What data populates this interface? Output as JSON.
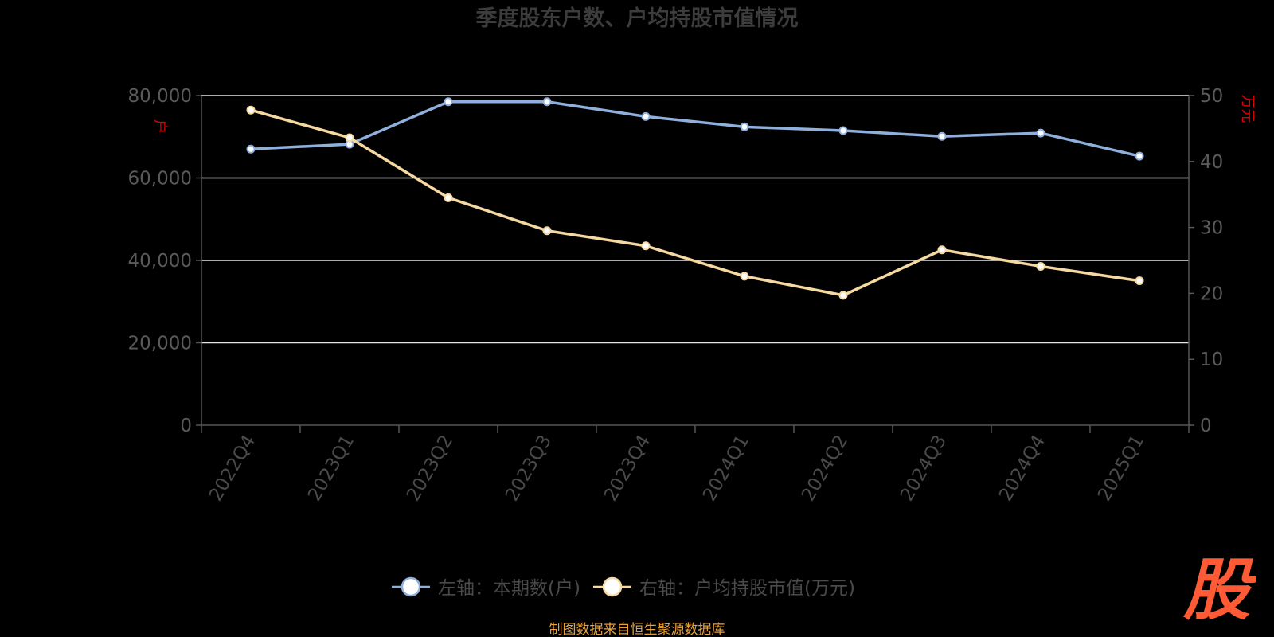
{
  "chart_data": {
    "type": "line",
    "title": "季度股东户数、户均持股市值情况",
    "categories": [
      "2022Q4",
      "2023Q1",
      "2023Q2",
      "2023Q3",
      "2023Q4",
      "2024Q1",
      "2024Q2",
      "2024Q3",
      "2024Q4",
      "2025Q1"
    ],
    "y_left": {
      "unit": "户",
      "ylim": [
        0,
        80000
      ],
      "ticks": [
        "0",
        "20,000",
        "40,000",
        "60,000",
        "80,000"
      ],
      "tick_values": [
        0,
        20000,
        40000,
        60000,
        80000
      ]
    },
    "y_right": {
      "unit": "万元",
      "ylim": [
        0,
        50
      ],
      "ticks": [
        "0",
        "10",
        "20",
        "30",
        "40",
        "50"
      ],
      "tick_values": [
        0,
        10,
        20,
        30,
        40,
        50
      ]
    },
    "series": [
      {
        "name": "左轴：本期数(户)",
        "axis": "left",
        "color": "#8fb0dc",
        "values": [
          67000,
          68200,
          78500,
          78500,
          74900,
          72400,
          71500,
          70100,
          70900,
          65300
        ]
      },
      {
        "name": "右轴：户均持股市值(万元)",
        "axis": "right",
        "color": "#f6d9a0",
        "values": [
          47.8,
          43.6,
          34.5,
          29.5,
          27.2,
          22.6,
          19.7,
          26.6,
          24.1,
          21.9
        ]
      }
    ],
    "grid": true,
    "legend_position": "bottom"
  },
  "footer": {
    "source": "制图数据来自恒生聚源数据库"
  },
  "logo": {
    "text": "股",
    "color": "#ff5a36"
  }
}
